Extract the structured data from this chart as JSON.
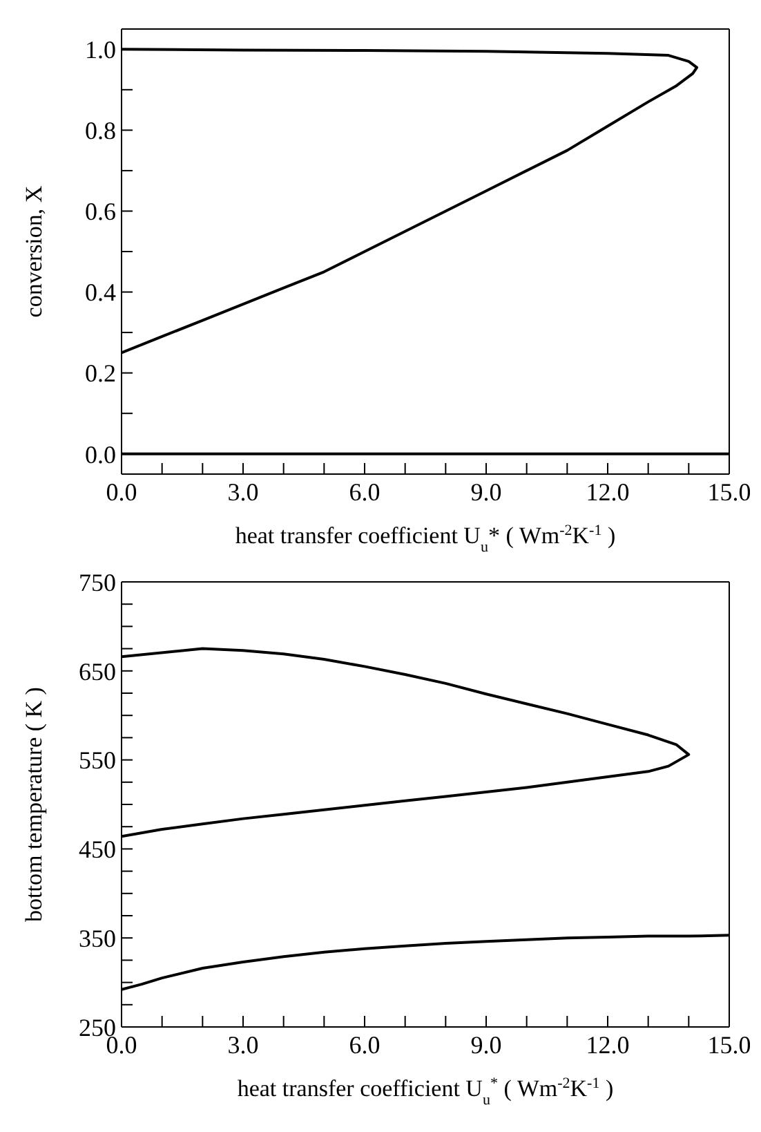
{
  "chart_data": [
    {
      "type": "line",
      "xlabel": "heat transfer coefficient U$_{u}$* ( Wm$^{-2}$K$^{-1}$ )",
      "ylabel": "conversion, X",
      "xlim": [
        0,
        15
      ],
      "ylim": [
        -0.05,
        1.05
      ],
      "xticks": [
        {
          "value": 0,
          "label": "0.0"
        },
        {
          "value": 1,
          "label": null
        },
        {
          "value": 2,
          "label": null
        },
        {
          "value": 3,
          "label": "3.0"
        },
        {
          "value": 4,
          "label": null
        },
        {
          "value": 5,
          "label": null
        },
        {
          "value": 6,
          "label": "6.0"
        },
        {
          "value": 7,
          "label": null
        },
        {
          "value": 8,
          "label": null
        },
        {
          "value": 9,
          "label": "9.0"
        },
        {
          "value": 10,
          "label": null
        },
        {
          "value": 11,
          "label": null
        },
        {
          "value": 12,
          "label": "12.0"
        },
        {
          "value": 13,
          "label": null
        },
        {
          "value": 14,
          "label": null
        },
        {
          "value": 15,
          "label": "15.0"
        }
      ],
      "yticks": [
        {
          "value": 0,
          "label": "0.0"
        },
        {
          "value": 0.1,
          "label": null
        },
        {
          "value": 0.2,
          "label": "0.2"
        },
        {
          "value": 0.3,
          "label": null
        },
        {
          "value": 0.4,
          "label": "0.4"
        },
        {
          "value": 0.5,
          "label": null
        },
        {
          "value": 0.6,
          "label": "0.6"
        },
        {
          "value": 0.7,
          "label": null
        },
        {
          "value": 0.8,
          "label": "0.8"
        },
        {
          "value": 0.9,
          "label": null
        },
        {
          "value": 1,
          "label": "1.0"
        }
      ],
      "marker": "none",
      "line_style": "solid",
      "series": [
        {
          "color": "#000000",
          "x": [
            0,
            1,
            2,
            3,
            4,
            5,
            6,
            7,
            8,
            9,
            10,
            11,
            12,
            13,
            13.7,
            14.1,
            14.2,
            14.0,
            13.5,
            12,
            9,
            6,
            3,
            0
          ],
          "values": [
            0.25,
            0.29,
            0.33,
            0.37,
            0.41,
            0.45,
            0.5,
            0.55,
            0.6,
            0.65,
            0.7,
            0.75,
            0.81,
            0.87,
            0.91,
            0.94,
            0.955,
            0.97,
            0.985,
            0.99,
            0.995,
            0.997,
            0.998,
            1.0
          ]
        },
        {
          "color": "#000000",
          "x": [
            0,
            15
          ],
          "values": [
            0,
            0
          ]
        }
      ]
    },
    {
      "type": "line",
      "xlabel": "heat transfer coefficient U$_{u}$$^{*}$ ( Wm$^{-2}$K$^{-1}$ )",
      "ylabel": "bottom temperature ( K )",
      "xlim": [
        0,
        15
      ],
      "ylim": [
        250,
        750
      ],
      "xticks": [
        {
          "value": 0,
          "label": "0.0"
        },
        {
          "value": 1,
          "label": null
        },
        {
          "value": 2,
          "label": null
        },
        {
          "value": 3,
          "label": "3.0"
        },
        {
          "value": 4,
          "label": null
        },
        {
          "value": 5,
          "label": null
        },
        {
          "value": 6,
          "label": "6.0"
        },
        {
          "value": 7,
          "label": null
        },
        {
          "value": 8,
          "label": null
        },
        {
          "value": 9,
          "label": "9.0"
        },
        {
          "value": 10,
          "label": null
        },
        {
          "value": 11,
          "label": null
        },
        {
          "value": 12,
          "label": "12.0"
        },
        {
          "value": 13,
          "label": null
        },
        {
          "value": 14,
          "label": null
        },
        {
          "value": 15,
          "label": "15.0"
        }
      ],
      "yticks": [
        250,
        {
          "value": 275,
          "label": null
        },
        {
          "value": 300,
          "label": null
        },
        {
          "value": 325,
          "label": null
        },
        350,
        {
          "value": 375,
          "label": null
        },
        {
          "value": 400,
          "label": null
        },
        {
          "value": 425,
          "label": null
        },
        450,
        {
          "value": 475,
          "label": null
        },
        {
          "value": 500,
          "label": null
        },
        {
          "value": 525,
          "label": null
        },
        550,
        {
          "value": 575,
          "label": null
        },
        {
          "value": 600,
          "label": null
        },
        {
          "value": 625,
          "label": null
        },
        650,
        {
          "value": 675,
          "label": null
        },
        {
          "value": 700,
          "label": null
        },
        {
          "value": 725,
          "label": null
        },
        750
      ],
      "marker": "none",
      "line_style": "solid",
      "series": [
        {
          "color": "#000000",
          "x": [
            0,
            1,
            2,
            3,
            4,
            5,
            6,
            7,
            8,
            9,
            10,
            11,
            12,
            13,
            13.5,
            14.0,
            13.7,
            13,
            12,
            11,
            10,
            9,
            8,
            7,
            6,
            5,
            4,
            3,
            2,
            0
          ],
          "values": [
            464,
            472,
            478,
            484,
            489,
            494,
            499,
            504,
            509,
            514,
            519,
            525,
            531,
            537,
            543,
            556,
            567,
            578,
            590,
            602,
            613,
            624,
            636,
            646,
            655,
            663,
            669,
            673,
            675,
            666
          ]
        },
        {
          "color": "#000000",
          "x": [
            0,
            0.5,
            1,
            2,
            3,
            4,
            5,
            6,
            7,
            8,
            9,
            10,
            11,
            12,
            13,
            14,
            15
          ],
          "values": [
            292,
            298,
            305,
            316,
            323,
            329,
            334,
            338,
            341,
            344,
            346,
            348,
            350,
            351,
            352,
            352,
            353
          ]
        }
      ]
    }
  ]
}
